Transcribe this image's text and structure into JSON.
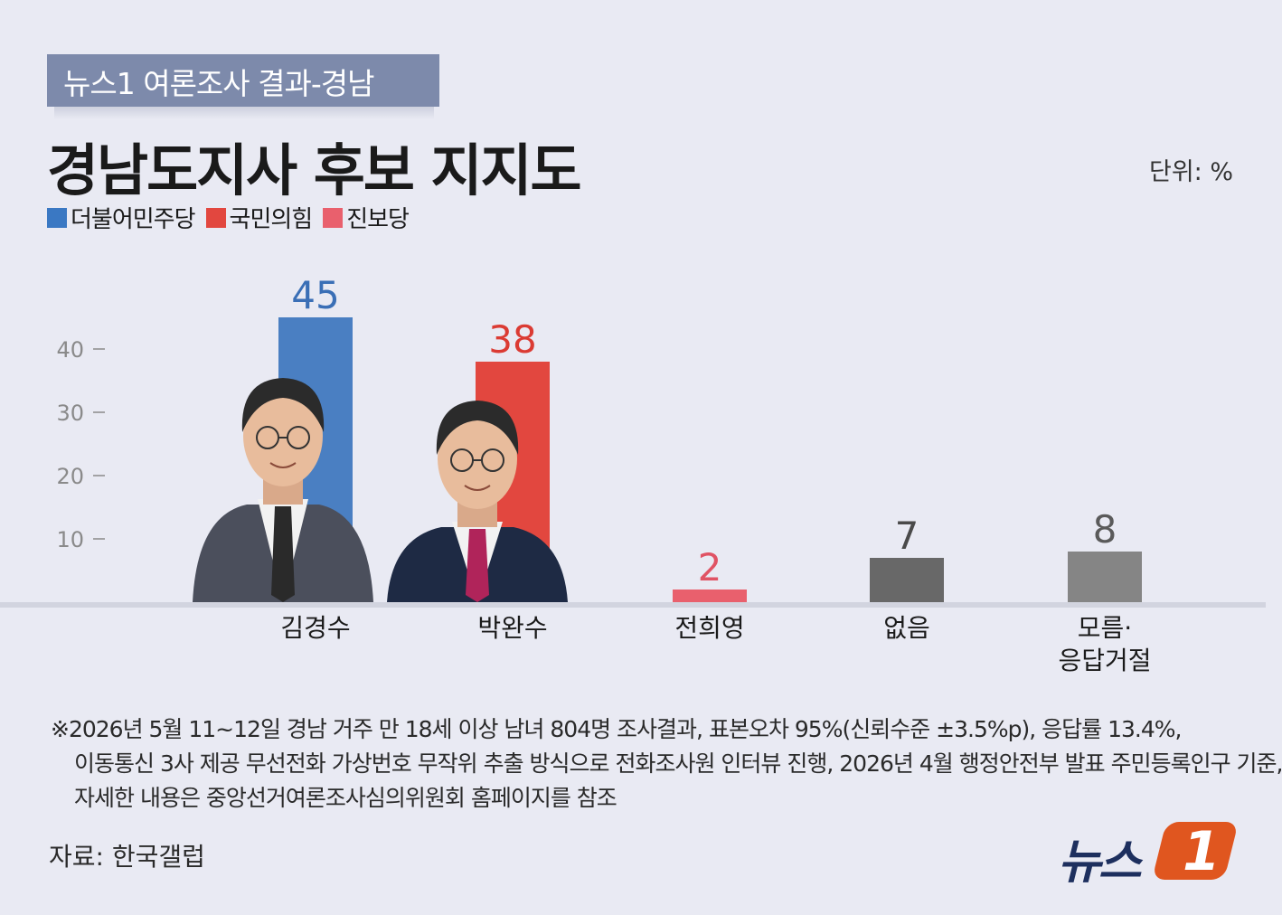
{
  "header": {
    "tag": "뉴스1 여론조사 결과-경남",
    "title": "경남도지사 후보 지지도",
    "unit": "단위: %"
  },
  "legend": [
    {
      "label": "더불어민주당",
      "color": "#3a78c3"
    },
    {
      "label": "국민의힘",
      "color": "#e2473f"
    },
    {
      "label": "진보당",
      "color": "#e9606d"
    }
  ],
  "chart_data": {
    "type": "bar",
    "categories": [
      "김경수",
      "박완수",
      "전희영",
      "없음",
      "모름·\n응답거절"
    ],
    "values": [
      45,
      38,
      2,
      7,
      8
    ],
    "colors": [
      "#4a7fc2",
      "#e2473f",
      "#e9606d",
      "#686868",
      "#858585"
    ],
    "label_colors": [
      "#3a6fb6",
      "#db3b33",
      "#e05364",
      "#4a4a4a",
      "#5a5a5a"
    ],
    "y_ticks": [
      10,
      20,
      30,
      40
    ],
    "ylim": [
      0,
      45
    ]
  },
  "notes": [
    "※2026년 5월 11~12일 경남 거주 만 18세 이상 남녀 804명 조사결과, 표본오차 95%(신뢰수준 ±3.5%p), 응답률 13.4%,",
    "이동통신 3사 제공 무선전화 가상번호 무작위 추출 방식으로 전화조사원 인터뷰 진행, 2026년 4월 행정안전부 발표 주민등록인구 기준,",
    "자세한 내용은 중앙선거여론조사심의위원회 홈페이지를 참조"
  ],
  "source": "자료: 한국갤럽",
  "logo": {
    "text": "뉴스",
    "badge": "1"
  }
}
